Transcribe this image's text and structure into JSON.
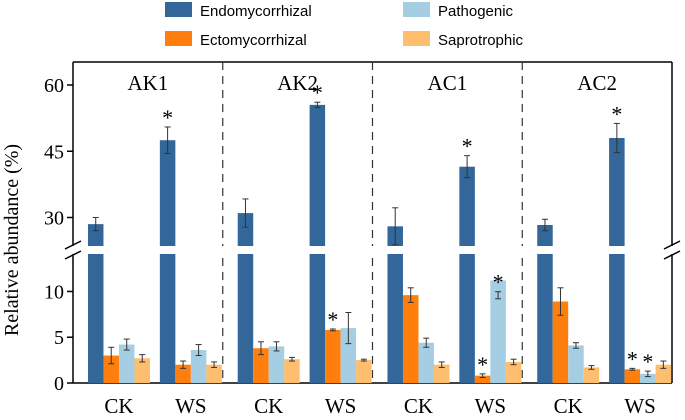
{
  "chart_data": {
    "type": "bar",
    "ylabel": "Relative abundance (%)",
    "y_axis_break": {
      "lower_range": [
        0,
        13
      ],
      "upper_range": [
        24,
        63
      ]
    },
    "yticks": [
      0,
      5,
      10,
      30,
      45,
      60
    ],
    "panels": [
      "AK1",
      "AK2",
      "AC1",
      "AC2"
    ],
    "categories": [
      "CK",
      "WS"
    ],
    "legend_position": "top",
    "series": [
      {
        "name": "Endomycorrhizal",
        "color": "#336699",
        "values": [
          [
            28.5,
            47.5
          ],
          [
            31.0,
            55.5
          ],
          [
            28.0,
            41.5
          ],
          [
            28.3,
            48.0
          ]
        ],
        "errors": [
          [
            1.5,
            3.0
          ],
          [
            3.2,
            0.6
          ],
          [
            4.2,
            2.5
          ],
          [
            1.3,
            3.3
          ]
        ],
        "significant": [
          [
            false,
            true
          ],
          [
            false,
            true
          ],
          [
            false,
            true
          ],
          [
            false,
            true
          ]
        ]
      },
      {
        "name": "Ectomycorrhizal",
        "color": "#FF7F0E",
        "values": [
          [
            3.0,
            2.0
          ],
          [
            3.8,
            5.8
          ],
          [
            9.6,
            0.8
          ],
          [
            8.9,
            1.5
          ]
        ],
        "errors": [
          [
            0.9,
            0.4
          ],
          [
            0.7,
            0.1
          ],
          [
            0.8,
            0.2
          ],
          [
            1.5,
            0.1
          ]
        ],
        "significant": [
          [
            false,
            false
          ],
          [
            false,
            true
          ],
          [
            false,
            true
          ],
          [
            false,
            true
          ]
        ]
      },
      {
        "name": "Pathogenic",
        "color": "#A6CEE3",
        "values": [
          [
            4.2,
            3.6
          ],
          [
            4.0,
            6.0
          ],
          [
            4.4,
            11.2
          ],
          [
            4.1,
            1.0
          ]
        ],
        "errors": [
          [
            0.6,
            0.6
          ],
          [
            0.5,
            1.7
          ],
          [
            0.5,
            2.0
          ],
          [
            0.3,
            0.3
          ]
        ],
        "significant": [
          [
            false,
            false
          ],
          [
            false,
            false
          ],
          [
            false,
            true
          ],
          [
            false,
            true
          ]
        ]
      },
      {
        "name": "Saprotrophic",
        "color": "#FDBF6F",
        "values": [
          [
            2.7,
            2.0
          ],
          [
            2.6,
            2.5
          ],
          [
            2.0,
            2.3
          ],
          [
            1.7,
            2.0
          ]
        ],
        "errors": [
          [
            0.4,
            0.3
          ],
          [
            0.2,
            0.1
          ],
          [
            0.3,
            0.3
          ],
          [
            0.2,
            0.4
          ]
        ],
        "significant": [
          [
            false,
            false
          ],
          [
            false,
            false
          ],
          [
            false,
            false
          ],
          [
            false,
            false
          ]
        ]
      }
    ],
    "significance_marker": "*",
    "grid": false
  }
}
